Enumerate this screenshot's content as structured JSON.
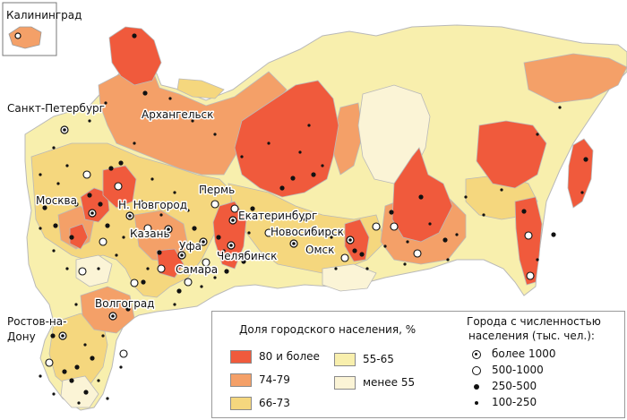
{
  "colors": {
    "sea": "#ffffff",
    "border": "#b9b9b9",
    "c80": "#f05a3c",
    "c74": "#f4a068",
    "c66": "#f5d77e",
    "c55": "#f8efad",
    "cLess": "#fbf4d6"
  },
  "inset": {
    "title": "Калининград"
  },
  "city_labels": {
    "spb": "Санкт-Петербург",
    "arkhangelsk": "Архангельск",
    "moscow": "Москва",
    "nnovgorod": "Н. Новгород",
    "perm": "Пермь",
    "ekaterinburg": "Екатеринбург",
    "novosibirsk": "Новосибирск",
    "kazan": "Казань",
    "ufa": "Уфа",
    "omsk": "Омск",
    "chelyabinsk": "Челябинск",
    "samara": "Самара",
    "volgograd": "Волгоград",
    "rostov1": "Ростов-на-",
    "rostov2": "Дону"
  },
  "legend": {
    "share_title": "Доля городского населения, %",
    "classes": [
      {
        "label": "80 и более",
        "color": "#f05a3c"
      },
      {
        "label": "74-79",
        "color": "#f4a068"
      },
      {
        "label": "66-73",
        "color": "#f5d77e"
      },
      {
        "label": "55-65",
        "color": "#f8efad"
      },
      {
        "label": "менее 55",
        "color": "#fbf4d6"
      }
    ],
    "cities_title_1": "Города с численностью",
    "cities_title_2": "населения (тыс. чел.):",
    "sizes": [
      {
        "label": "более 1000",
        "icon": "ringed-dot-icon"
      },
      {
        "label": "500-1000",
        "icon": "hollow-circle-icon"
      },
      {
        "label": "250-500",
        "icon": "black-dot-icon"
      },
      {
        "label": "100-250",
        "icon": "small-dot-icon"
      }
    ]
  }
}
